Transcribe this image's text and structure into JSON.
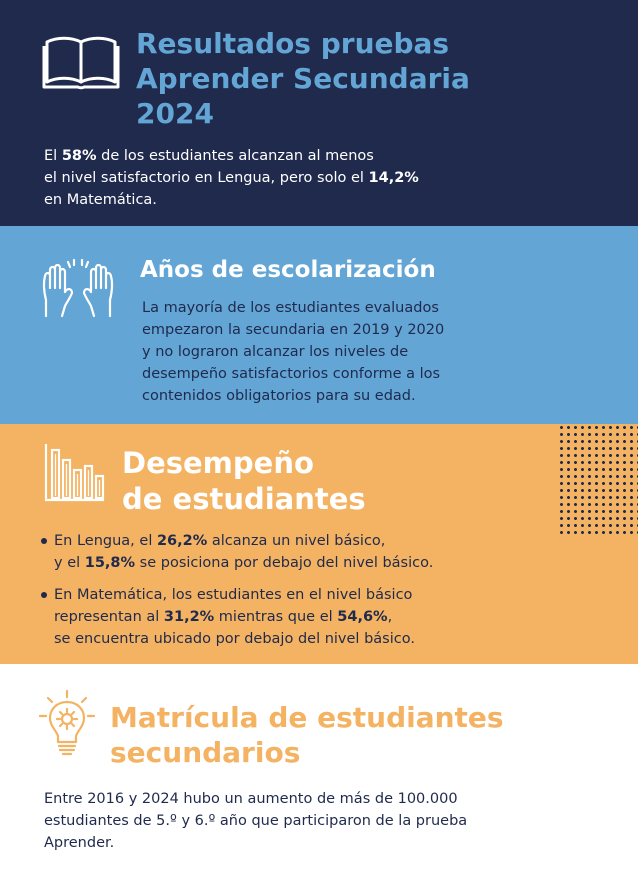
{
  "section1": {
    "title_line1": "Resultados pruebas",
    "title_line2": "Aprender Secundaria",
    "title_line3": "2024",
    "line1_pre": "El ",
    "line1_bold": "58%",
    "line1_post": " de los estudiantes alcanzan al menos",
    "line2_pre": "el nivel satisfactorio en Lengua, pero solo el ",
    "line2_bold": "14,2%",
    "line3": "en Matemática.",
    "icon": "open-book-icon",
    "bg_color": "#1f2a4d",
    "title_color": "#63a5d5"
  },
  "section2": {
    "title": "Años de escolarización",
    "lines": [
      "La mayoría de los estudiantes evaluados",
      "empezaron la secundaria en 2019 y 2020",
      "y no lograron alcanzar los niveles de",
      "desempeño satisfactorios conforme a los",
      "contenidos obligatorios para su edad."
    ],
    "icon": "raised-hands-icon",
    "bg_color": "#63a5d5"
  },
  "section3": {
    "title_line1": "Desempeño",
    "title_line2": "de estudiantes",
    "bullet1": {
      "line1_pre": "En Lengua, el ",
      "line1_bold": "26,2%",
      "line1_post": " alcanza un nivel básico,",
      "line2_pre": "y el ",
      "line2_bold": "15,8%",
      "line2_post": " se posiciona por debajo del nivel básico."
    },
    "bullet2": {
      "line1": "En Matemática, los estudiantes en el nivel básico",
      "line2_pre": "representan al ",
      "line2_bold": "31,2%",
      "line2_mid": " mientras que el ",
      "line2_bold2": "54,6%",
      "line2_post": ",",
      "line3": "se encuentra ubicado por debajo del nivel básico."
    },
    "icon": "bar-chart-icon",
    "bg_color": "#f4b263"
  },
  "section4": {
    "title_line1": "Matrícula de estudiantes",
    "title_line2": "secundarios",
    "lines": [
      "Entre 2016 y 2024 hubo un aumento de más de 100.000",
      "estudiantes de 5.º y 6.º año que participaron de la prueba",
      "Aprender."
    ],
    "icon": "lightbulb-gear-icon",
    "title_color": "#f4b263"
  }
}
